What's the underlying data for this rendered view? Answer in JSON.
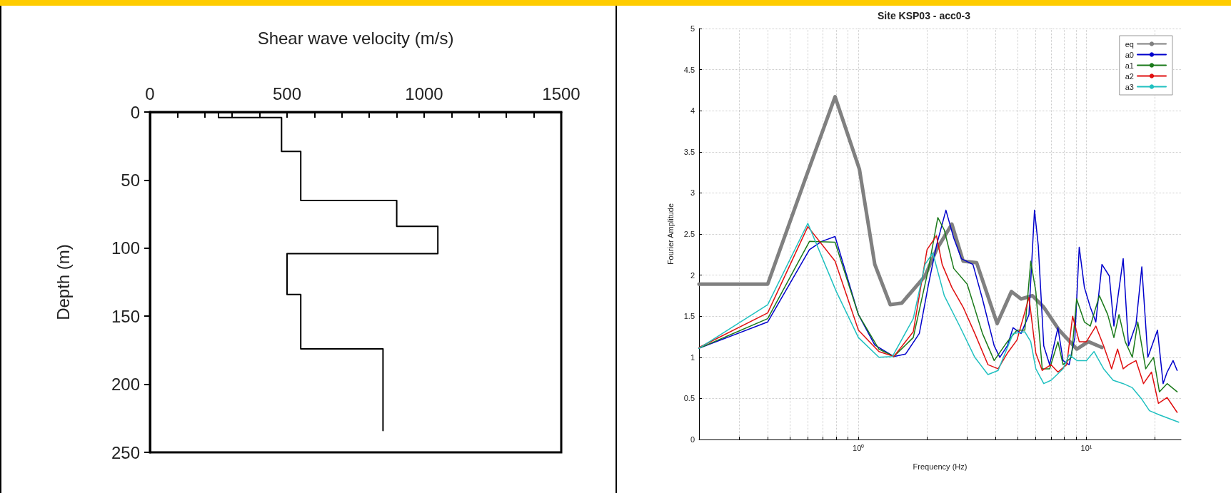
{
  "chart_data": [
    {
      "type": "line",
      "xlabel": "Shear wave velocity (m/s)",
      "ylabel": "Depth (m)",
      "xlim": [
        0,
        1500
      ],
      "xticks": [
        0,
        {
          "value": 100,
          "label": null
        },
        {
          "value": 200,
          "label": null
        },
        {
          "value": 300,
          "label": null
        },
        {
          "value": 400,
          "label": null
        },
        500,
        {
          "value": 600,
          "label": null
        },
        {
          "value": 700,
          "label": null
        },
        {
          "value": 800,
          "label": null
        },
        {
          "value": 900,
          "label": null
        },
        1000,
        {
          "value": 1100,
          "label": null
        },
        {
          "value": 1200,
          "label": null
        },
        {
          "value": 1300,
          "label": null
        },
        {
          "value": 1400,
          "label": null
        },
        1500
      ],
      "ylim": [
        250,
        0
      ],
      "yticks": [
        0,
        50,
        100,
        150,
        200,
        250
      ],
      "grid": false,
      "legend": false,
      "marker": "none",
      "line_style": "solid",
      "series": [
        {
          "color": "#000000",
          "x": [
            250,
            250,
            480,
            480,
            550,
            550,
            900,
            900,
            1050,
            1050,
            500,
            500,
            550,
            550,
            850,
            850
          ],
          "values": [
            0,
            4,
            4,
            29,
            29,
            65,
            65,
            84,
            84,
            104,
            104,
            134,
            134,
            174,
            174,
            234
          ]
        }
      ]
    },
    {
      "type": "line",
      "title": "Site KSP03 - acc0-3",
      "xlabel": "Frequency (Hz)",
      "ylabel": "Fourier Amplitude",
      "log": "x",
      "xlim": [
        0.2,
        26
      ],
      "xticks": [
        {
          "value": 0.2,
          "label": null
        },
        {
          "value": 0.3,
          "label": null
        },
        {
          "value": 0.4,
          "label": null
        },
        {
          "value": 0.5,
          "label": null
        },
        {
          "value": 0.6,
          "label": null
        },
        {
          "value": 0.7,
          "label": null
        },
        {
          "value": 0.8,
          "label": null
        },
        {
          "value": 0.9,
          "label": null
        },
        {
          "value": 1,
          "label": "10⁰"
        },
        {
          "value": 2,
          "label": null
        },
        {
          "value": 3,
          "label": null
        },
        {
          "value": 4,
          "label": null
        },
        {
          "value": 5,
          "label": null
        },
        {
          "value": 6,
          "label": null
        },
        {
          "value": 7,
          "label": null
        },
        {
          "value": 8,
          "label": null
        },
        {
          "value": 9,
          "label": null
        },
        {
          "value": 10,
          "label": "10¹"
        },
        {
          "value": 20,
          "label": null
        }
      ],
      "ylim": [
        0,
        5
      ],
      "yticks": [
        0,
        0.5,
        1,
        1.5,
        2,
        2.5,
        3,
        3.5,
        4,
        4.5,
        5
      ],
      "grid": true,
      "legend": "top right",
      "marker": "none",
      "line_style": "solid",
      "series": [
        {
          "name": "eq",
          "color": "#808080",
          "x": [
            0.2,
            0.4,
            0.59,
            0.79,
            1.01,
            1.18,
            1.38,
            1.55,
            1.96,
            2.2,
            2.57,
            2.88,
            3.3,
            3.64,
            4.06,
            4.69,
            5.17,
            5.8,
            6.5,
            7.6,
            9.07,
            10.2,
            11.7
          ],
          "values": [
            1.89,
            1.89,
            3.2,
            4.17,
            3.29,
            2.13,
            1.64,
            1.66,
            1.99,
            2.31,
            2.62,
            2.17,
            2.15,
            1.8,
            1.41,
            1.8,
            1.71,
            1.75,
            1.61,
            1.33,
            1.1,
            1.19,
            1.12
          ]
        },
        {
          "name": "a0",
          "color": "#0000cc",
          "x": [
            0.2,
            0.4,
            0.61,
            0.69,
            0.79,
            1.0,
            1.18,
            1.43,
            1.61,
            1.85,
            2.03,
            2.2,
            2.42,
            2.62,
            2.83,
            3.18,
            3.5,
            3.94,
            4.17,
            4.5,
            4.77,
            5.17,
            5.6,
            5.92,
            6.15,
            6.5,
            6.9,
            7.5,
            7.9,
            8.4,
            8.9,
            9.3,
            9.8,
            10.4,
            11.0,
            11.7,
            12.6,
            13.2,
            14.5,
            15.3,
            16.5,
            17.5,
            18.6,
            20.5,
            21.7,
            22.6,
            24,
            25
          ],
          "values": [
            1.11,
            1.43,
            2.31,
            2.41,
            2.47,
            1.52,
            1.15,
            1.01,
            1.04,
            1.29,
            1.89,
            2.36,
            2.79,
            2.45,
            2.2,
            2.13,
            1.71,
            1.14,
            1.0,
            1.14,
            1.36,
            1.29,
            1.52,
            2.79,
            2.36,
            1.14,
            0.91,
            1.36,
            0.96,
            0.91,
            1.24,
            2.34,
            1.85,
            1.61,
            1.43,
            2.13,
            1.99,
            1.38,
            2.2,
            1.14,
            1.4,
            2.1,
            1.0,
            1.33,
            0.68,
            0.82,
            0.96,
            0.84
          ]
        },
        {
          "name": "a1",
          "color": "#1a7a1a",
          "x": [
            0.2,
            0.4,
            0.61,
            0.79,
            1.0,
            1.23,
            1.43,
            1.74,
            2.03,
            2.23,
            2.38,
            2.62,
            3.0,
            3.5,
            3.94,
            4.5,
            4.96,
            5.37,
            5.7,
            6.0,
            6.4,
            6.9,
            7.5,
            7.9,
            8.6,
            9.06,
            9.8,
            10.4,
            11.4,
            12.4,
            13.2,
            13.9,
            14.8,
            15.9,
            16.8,
            18.2,
            19.7,
            20.9,
            22.6,
            25
          ],
          "values": [
            1.11,
            1.47,
            2.41,
            2.4,
            1.52,
            1.1,
            1.01,
            1.24,
            2.08,
            2.7,
            2.55,
            2.08,
            1.89,
            1.29,
            0.96,
            1.19,
            1.33,
            1.33,
            2.17,
            1.8,
            0.86,
            0.86,
            1.19,
            0.91,
            1.0,
            1.71,
            1.43,
            1.38,
            1.75,
            1.52,
            1.24,
            1.52,
            1.19,
            1.0,
            1.43,
            0.86,
            1.0,
            0.58,
            0.68,
            0.58
          ]
        },
        {
          "name": "a2",
          "color": "#e01010",
          "x": [
            0.2,
            0.4,
            0.6,
            0.79,
            1.0,
            1.23,
            1.43,
            1.74,
            2.0,
            2.2,
            2.33,
            2.57,
            2.88,
            3.24,
            3.7,
            4.1,
            4.5,
            4.96,
            5.6,
            6.0,
            6.4,
            7.0,
            7.5,
            8.2,
            8.7,
            9.3,
            10,
            11.0,
            11.9,
            12.9,
            13.7,
            14.5,
            15.3,
            16.5,
            17.8,
            19.3,
            20.7,
            22.6,
            25
          ],
          "values": [
            1.12,
            1.54,
            2.59,
            2.17,
            1.33,
            1.07,
            1.01,
            1.31,
            2.31,
            2.48,
            2.13,
            1.85,
            1.61,
            1.29,
            0.91,
            0.86,
            1.05,
            1.21,
            1.73,
            1.05,
            0.84,
            0.91,
            0.82,
            0.91,
            1.5,
            1.19,
            1.19,
            1.38,
            1.14,
            0.86,
            1.1,
            0.86,
            0.91,
            0.96,
            0.68,
            0.82,
            0.44,
            0.51,
            0.33
          ]
        },
        {
          "name": "a3",
          "color": "#20c0c0",
          "x": [
            0.2,
            0.4,
            0.6,
            0.8,
            1.0,
            1.23,
            1.41,
            1.74,
            1.96,
            2.12,
            2.38,
            2.78,
            3.24,
            3.7,
            4.1,
            4.77,
            5.37,
            5.7,
            6.0,
            6.5,
            7.0,
            7.9,
            8.4,
            9.1,
            10,
            10.8,
            11.9,
            13.1,
            14.5,
            15.9,
            17.5,
            18.9,
            20.9,
            25.4
          ],
          "values": [
            1.11,
            1.64,
            2.63,
            1.8,
            1.24,
            1.0,
            1.01,
            1.47,
            2.13,
            2.27,
            1.75,
            1.38,
            1.0,
            0.79,
            0.84,
            1.29,
            1.31,
            1.19,
            0.86,
            0.68,
            0.72,
            0.86,
            1.03,
            0.96,
            0.96,
            1.07,
            0.86,
            0.72,
            0.68,
            0.63,
            0.49,
            0.35,
            0.3,
            0.21
          ]
        }
      ]
    }
  ]
}
